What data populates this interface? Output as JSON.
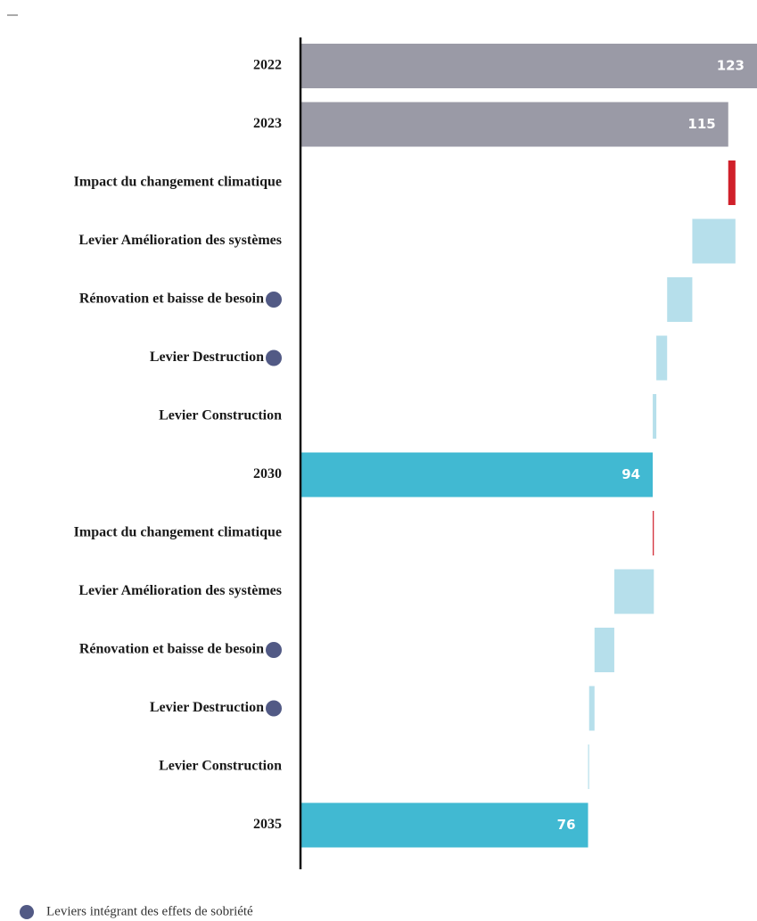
{
  "chart_data": {
    "type": "waterfall",
    "categories": [
      "2022",
      "2023",
      "Impact du changement climatique",
      "Levier Amélioration des systèmes",
      "Rénovation et baisse de besoin",
      "Levier Destruction",
      "Levier Construction",
      "2030",
      "Impact du changement climatique",
      "Levier Amélioration des systèmes",
      "Rénovation et baisse de besoin",
      "Levier Destruction",
      "Levier Construction",
      "2035"
    ],
    "values": [
      123,
      115,
      2,
      -12,
      -7,
      -3,
      -1,
      94,
      0.3,
      -11,
      -5.5,
      -1.5,
      -0.3,
      76
    ],
    "measures": [
      "absolute",
      "absolute",
      "relative",
      "relative",
      "relative",
      "relative",
      "relative",
      "absolute",
      "relative",
      "relative",
      "relative",
      "relative",
      "relative",
      "absolute"
    ],
    "colors": [
      "#9a9aa6",
      "#9a9aa6",
      "#d0202a",
      "#b6dfeb",
      "#b6dfeb",
      "#b6dfeb",
      "#b6dfeb",
      "#41b9d2",
      "#d0202a",
      "#b6dfeb",
      "#b6dfeb",
      "#b6dfeb",
      "#b6dfeb",
      "#41b9d2"
    ],
    "sobriety": [
      false,
      false,
      false,
      false,
      true,
      true,
      false,
      false,
      false,
      false,
      true,
      true,
      false,
      false
    ],
    "marker_color": "#525a85",
    "legend": "Leviers intégrant des effets de sobriété",
    "xlim": [
      -4,
      123
    ]
  }
}
